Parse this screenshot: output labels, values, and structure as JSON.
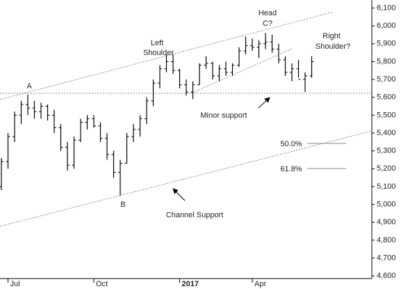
{
  "chart_data": {
    "type": "ohlc",
    "color": "#000000",
    "categories": [
      null,
      "Jul",
      null,
      null,
      null,
      null,
      null,
      null,
      null,
      null,
      null,
      null,
      null,
      null,
      "Oct",
      null,
      null,
      null,
      null,
      null,
      null,
      null,
      null,
      null,
      null,
      null,
      null,
      "2017",
      null,
      null,
      null,
      null,
      null,
      null,
      null,
      null,
      null,
      null,
      "Apr",
      null,
      null,
      null,
      null,
      null,
      null,
      null,
      null,
      null
    ],
    "open": [
      5100,
      5240,
      5380,
      5500,
      5560,
      5540,
      5520,
      5550,
      5500,
      5430,
      5320,
      5220,
      5360,
      5460,
      5480,
      5440,
      5370,
      5280,
      5180,
      5230,
      5380,
      5420,
      5480,
      5580,
      5680,
      5760,
      5800,
      5750,
      5670,
      5630,
      5670,
      5780,
      5790,
      5720,
      5760,
      5740,
      5780,
      5860,
      5890,
      5880,
      5900,
      5910,
      5870,
      5810,
      5740,
      5760,
      5700,
      5720
    ],
    "high": [
      5260,
      5400,
      5520,
      5580,
      5615,
      5580,
      5570,
      5560,
      5530,
      5450,
      5350,
      5380,
      5480,
      5500,
      5500,
      5460,
      5400,
      5300,
      5250,
      5400,
      5450,
      5500,
      5600,
      5700,
      5780,
      5840,
      5840,
      5760,
      5700,
      5690,
      5790,
      5830,
      5800,
      5780,
      5800,
      5790,
      5880,
      5940,
      5930,
      5920,
      5960,
      5950,
      5900,
      5830,
      5790,
      5810,
      5740,
      5830
    ],
    "low": [
      5080,
      5200,
      5350,
      5450,
      5500,
      5480,
      5480,
      5470,
      5400,
      5300,
      5190,
      5200,
      5350,
      5420,
      5430,
      5350,
      5250,
      5150,
      5050,
      5230,
      5350,
      5380,
      5450,
      5550,
      5650,
      5740,
      5730,
      5650,
      5610,
      5590,
      5670,
      5760,
      5700,
      5690,
      5720,
      5720,
      5770,
      5840,
      5860,
      5820,
      5870,
      5850,
      5790,
      5720,
      5690,
      5710,
      5630,
      5710
    ],
    "close": [
      5240,
      5380,
      5500,
      5560,
      5540,
      5520,
      5550,
      5500,
      5430,
      5320,
      5220,
      5360,
      5460,
      5480,
      5440,
      5370,
      5280,
      5180,
      5230,
      5380,
      5420,
      5480,
      5580,
      5680,
      5760,
      5800,
      5750,
      5670,
      5630,
      5670,
      5780,
      5790,
      5720,
      5760,
      5740,
      5780,
      5860,
      5890,
      5880,
      5900,
      5910,
      5870,
      5810,
      5740,
      5760,
      5700,
      5720,
      5800
    ],
    "ylim": [
      4585,
      6145
    ],
    "yticks": [
      {
        "value": 4600,
        "label": "4,600"
      },
      {
        "value": 4700,
        "label": "4,700"
      },
      {
        "value": 4800,
        "label": "4,800"
      },
      {
        "value": 4900,
        "label": "4,900"
      },
      {
        "value": 5000,
        "label": "5,000"
      },
      {
        "value": 5100,
        "label": "5,100"
      },
      {
        "value": 5200,
        "label": "5,200"
      },
      {
        "value": 5300,
        "label": "5,300"
      },
      {
        "value": 5400,
        "label": "5,400"
      },
      {
        "value": 5500,
        "label": "5,500"
      },
      {
        "value": 5600,
        "label": "5,600"
      },
      {
        "value": 5700,
        "label": "5,700"
      },
      {
        "value": 5800,
        "label": "5,800"
      },
      {
        "value": 5900,
        "label": "5,900"
      },
      {
        "value": 6000,
        "label": "6,000"
      },
      {
        "value": 6100,
        "label": "6,100"
      }
    ],
    "annotations": [
      "A",
      "B",
      "Left",
      "Shoulder",
      "Head",
      "C?",
      "Right",
      "Shoulder?",
      "Minor support",
      "Channel Support",
      "50.0%",
      "61.8%"
    ]
  }
}
